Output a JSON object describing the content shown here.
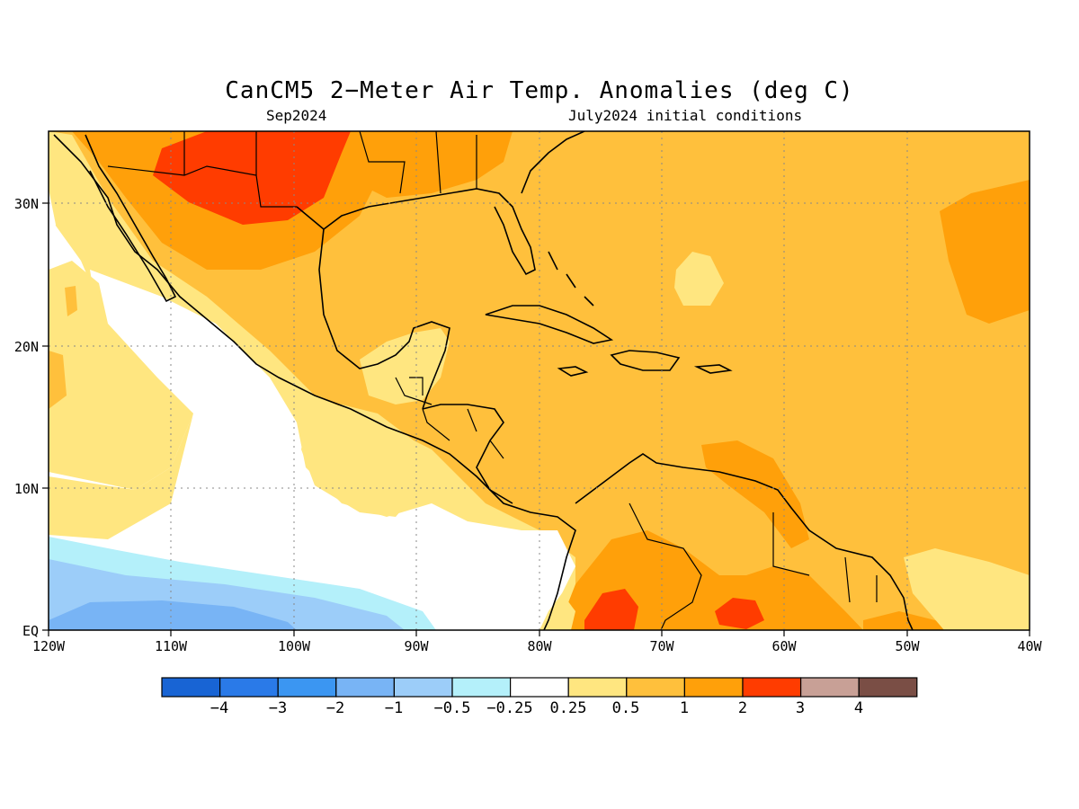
{
  "title": "CanCM5 2−Meter Air Temp. Anomalies (deg C)",
  "subtitle_left": "Sep2024",
  "subtitle_right": "July2024 initial conditions",
  "map": {
    "x_ticks": [
      "120W",
      "110W",
      "100W",
      "90W",
      "80W",
      "70W",
      "60W",
      "50W",
      "40W"
    ],
    "y_ticks": [
      "EQ",
      "10N",
      "20N",
      "30N"
    ],
    "region": "Gulf of Mexico / Caribbean / Central America / northern South America",
    "lon_range": [
      -120,
      -40
    ],
    "lat_range": [
      0,
      35
    ]
  },
  "colorbar": {
    "labels": [
      "−4",
      "−3",
      "−2",
      "−1",
      "−0.5",
      "−0.25",
      "0.25",
      "0.5",
      "1",
      "2",
      "3",
      "4"
    ],
    "colors": [
      "#1864d4",
      "#2a7ae8",
      "#3b96f2",
      "#78b4f5",
      "#9ccdf9",
      "#b4f0fa",
      "#ffffff",
      "#ffe680",
      "#ffc03c",
      "#ffa00a",
      "#ff3c00",
      "#c8a096",
      "#7a4e45"
    ]
  }
}
